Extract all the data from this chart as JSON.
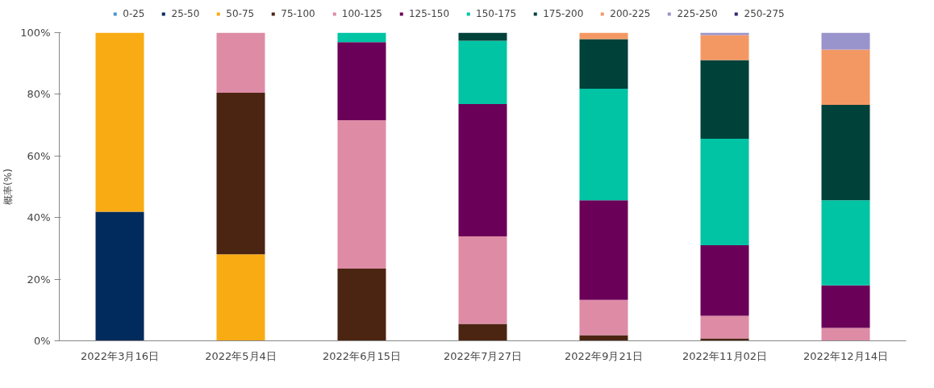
{
  "chart_data": {
    "type": "bar",
    "stacked": true,
    "ylabel": "概率(%)",
    "legend": "top",
    "grid": false,
    "categories": [
      "2022年3月16日",
      "2022年5月4日",
      "2022年6月15日",
      "2022年7月27日",
      "2022年9月21日",
      "2022年11月02日",
      "2022年12月14日"
    ],
    "ylim": [
      0,
      100
    ],
    "yticks": [
      {
        "value": 0,
        "label": "0%"
      },
      {
        "value": 20,
        "label": "20%"
      },
      {
        "value": 40,
        "label": "40%"
      },
      {
        "value": 60,
        "label": "60%"
      },
      {
        "value": 80,
        "label": "80%"
      },
      {
        "value": 100,
        "label": "100%"
      }
    ],
    "series": [
      {
        "name": "0-25",
        "color": "#4f91c8",
        "values": [
          null,
          null,
          null,
          null,
          null,
          null,
          null
        ]
      },
      {
        "name": "25-50",
        "color": "#002b5c",
        "values": [
          41.9,
          null,
          null,
          null,
          null,
          null,
          null
        ]
      },
      {
        "name": "50-75",
        "color": "#f9ab13",
        "values": [
          58.1,
          28.1,
          null,
          null,
          null,
          null,
          null
        ]
      },
      {
        "name": "75-100",
        "color": "#4b2511",
        "values": [
          null,
          52.4,
          23.4,
          5.5,
          1.8,
          0.8,
          null
        ]
      },
      {
        "name": "100-125",
        "color": "#de8ba6",
        "values": [
          null,
          19.5,
          48.2,
          28.4,
          11.5,
          7.3,
          4.2
        ]
      },
      {
        "name": "125-150",
        "color": "#6b0058",
        "values": [
          null,
          null,
          25.3,
          42.9,
          32.3,
          22.9,
          13.8
        ]
      },
      {
        "name": "150-175",
        "color": "#00c4a4",
        "values": [
          null,
          null,
          3.1,
          20.6,
          36.2,
          34.6,
          27.6
        ]
      },
      {
        "name": "175-200",
        "color": "#00413a",
        "values": [
          null,
          null,
          null,
          2.6,
          16.1,
          25.5,
          31.0
        ]
      },
      {
        "name": "200-225",
        "color": "#f49863",
        "values": [
          null,
          null,
          null,
          null,
          2.1,
          8.1,
          17.9
        ]
      },
      {
        "name": "225-250",
        "color": "#9a94cc",
        "values": [
          null,
          null,
          null,
          null,
          null,
          0.8,
          5.5
        ]
      },
      {
        "name": "250-275",
        "color": "#2e2870",
        "values": [
          null,
          null,
          null,
          null,
          null,
          null,
          null
        ]
      }
    ]
  }
}
